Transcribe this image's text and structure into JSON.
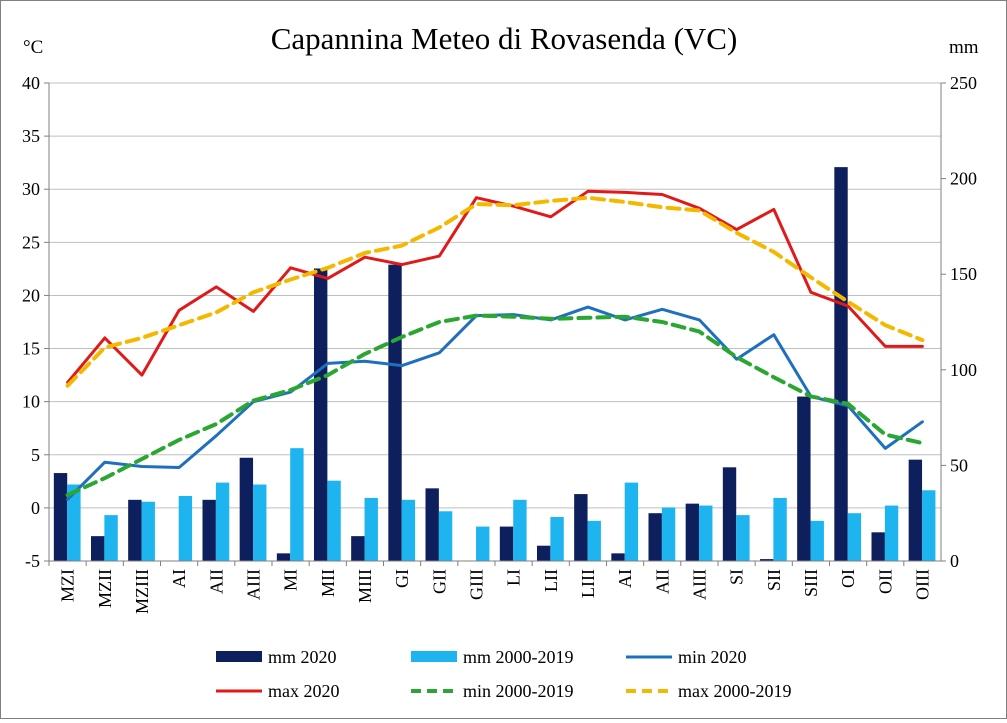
{
  "chart_data": {
    "type": "bar",
    "title": "Capannina Meteo di Rovasenda (VC)",
    "ylabel_left": "°C",
    "ylabel_right": "mm",
    "ylim_left": [
      -5,
      40
    ],
    "yticks_left": [
      "-5",
      "0",
      "5",
      "10",
      "15",
      "20",
      "25",
      "30",
      "35",
      "40"
    ],
    "ylim_right": [
      0,
      250
    ],
    "yticks_right": [
      "0",
      "50",
      "100",
      "150",
      "200",
      "250"
    ],
    "categories": [
      "MZI",
      "MZII",
      "MZIII",
      "AI",
      "AII",
      "AIII",
      "MI",
      "MII",
      "MIII",
      "GI",
      "GII",
      "GIII",
      "LI",
      "LII",
      "LIII",
      "AI",
      "AII",
      "AIII",
      "SI",
      "SII",
      "SIII",
      "OI",
      "OII",
      "OIII"
    ],
    "bar_series": [
      {
        "name": "mm 2020",
        "color": "#0d1f5c",
        "axis": "right",
        "values": [
          46,
          13,
          32,
          0,
          32,
          54,
          4,
          153,
          13,
          155,
          38,
          0,
          18,
          8,
          35,
          4,
          25,
          30,
          49,
          1,
          86,
          206,
          15,
          53
        ]
      },
      {
        "name": "mm 2000-2019",
        "color": "#1eb4f0",
        "axis": "right",
        "values": [
          40,
          24,
          31,
          34,
          41,
          40,
          59,
          42,
          33,
          32,
          26,
          18,
          32,
          23,
          21,
          41,
          28,
          29,
          24,
          33,
          21,
          25,
          29,
          37
        ]
      }
    ],
    "line_series": [
      {
        "name": "min 2020",
        "color": "#1f6fbf",
        "dashed": false,
        "axis": "left",
        "values": [
          0.8,
          4.3,
          3.9,
          3.8,
          6.8,
          10,
          10.9,
          13.6,
          13.8,
          13.4,
          14.6,
          18.1,
          18.2,
          17.7,
          18.9,
          17.7,
          18.7,
          17.7,
          14,
          16.3,
          10.5,
          9.6,
          5.6,
          8.1
        ]
      },
      {
        "name": "max 2020",
        "color": "#e01a1a",
        "dashed": false,
        "axis": "left",
        "values": [
          11.8,
          16,
          12.5,
          18.6,
          20.8,
          18.5,
          22.6,
          21.6,
          23.6,
          22.9,
          23.7,
          29.2,
          28.4,
          27.4,
          29.8,
          29.7,
          29.5,
          28.2,
          26.2,
          28.1,
          20.3,
          19,
          15.2,
          15.2
        ]
      },
      {
        "name": "min 2000-2019",
        "color": "#2aa632",
        "dashed": true,
        "axis": "left",
        "values": [
          1.2,
          2.8,
          4.6,
          6.4,
          7.9,
          10.1,
          11.1,
          12.5,
          14.5,
          16.1,
          17.5,
          18.1,
          18,
          17.8,
          17.9,
          18,
          17.5,
          16.6,
          14.2,
          12.3,
          10.5,
          9.8,
          6.9,
          6.1
        ]
      },
      {
        "name": "max 2000-2019",
        "color": "#f5b800",
        "dashed": true,
        "axis": "left",
        "values": [
          11.5,
          15.1,
          16,
          17.2,
          18.4,
          20.3,
          21.5,
          22.6,
          24,
          24.7,
          26.4,
          28.6,
          28.5,
          28.9,
          29.2,
          28.8,
          28.3,
          28,
          25.9,
          24.1,
          21.7,
          19.4,
          17.2,
          15.8
        ]
      }
    ],
    "legend": {
      "placement": "bottom",
      "rows": [
        [
          "mm 2020",
          "mm 2000-2019",
          "min 2020"
        ],
        [
          "max 2020",
          "min 2000-2019",
          "max 2000-2019"
        ]
      ]
    },
    "grid": true
  }
}
